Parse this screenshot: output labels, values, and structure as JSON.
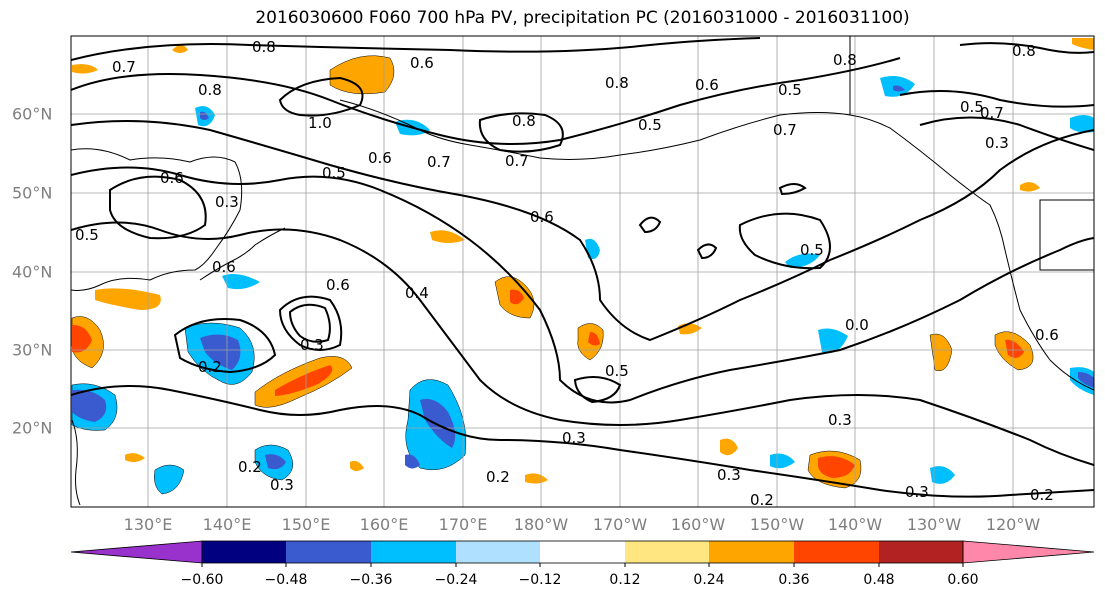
{
  "title": "2016030600 F060 700 hPa PV, precipitation PC (2016031000 - 2016031100)",
  "map": {
    "projection": "lat-lon",
    "lon_labels": [
      "130°E",
      "140°E",
      "150°E",
      "160°E",
      "170°E",
      "180°W",
      "170°W",
      "160°W",
      "150°W",
      "140°W",
      "130°W",
      "120°W"
    ],
    "lat_labels": [
      "60°N",
      "50°N",
      "40°N",
      "30°N",
      "20°N"
    ],
    "gridlines": true,
    "coastlines": true,
    "pv_contour_labels": [
      "0.8",
      "0.7",
      "0.8",
      "0.6",
      "0.8",
      "0.6",
      "0.5",
      "0.5",
      "0.7",
      "1.0",
      "0.8",
      "0.7",
      "0.6",
      "0.5",
      "0.6",
      "0.3",
      "0.5",
      "0.7",
      "0.8",
      "0.6",
      "0.3",
      "0.5",
      "0.7",
      "0.8",
      "0.6",
      "0.4",
      "0.6",
      "0.2",
      "0.3",
      "0.5",
      "0.3",
      "0.2",
      "0.3",
      "0.2",
      "0.3",
      "0.2",
      "0.3",
      "0.5",
      "0.0",
      "0.6",
      "0.2",
      "0.3"
    ]
  },
  "colorbar": {
    "ticks": [
      "−0.60",
      "−0.48",
      "−0.36",
      "−0.24",
      "−0.12",
      "0.12",
      "0.24",
      "0.36",
      "0.48",
      "0.60"
    ],
    "colors": [
      "#9932cc",
      "#000080",
      "#3a5bcf",
      "#00bfff",
      "#b0e0ff",
      "#ffffff",
      "#ffe680",
      "#ffa500",
      "#ff4500",
      "#b22222",
      "#ff88aa"
    ]
  },
  "chart_data": {
    "type": "heatmap",
    "title": "2016030600 F060 700 hPa PV, precipitation PC (2016031000 - 2016031100)",
    "variable_contours": "700 hPa PV",
    "variable_shaded": "precipitation PC",
    "color_levels": [
      -0.6,
      -0.48,
      -0.36,
      -0.24,
      -0.12,
      0.12,
      0.24,
      0.36,
      0.48,
      0.6
    ],
    "lon_range": [
      "122°E",
      "113°W"
    ],
    "lat_range": [
      "10°N",
      "70°N"
    ]
  }
}
